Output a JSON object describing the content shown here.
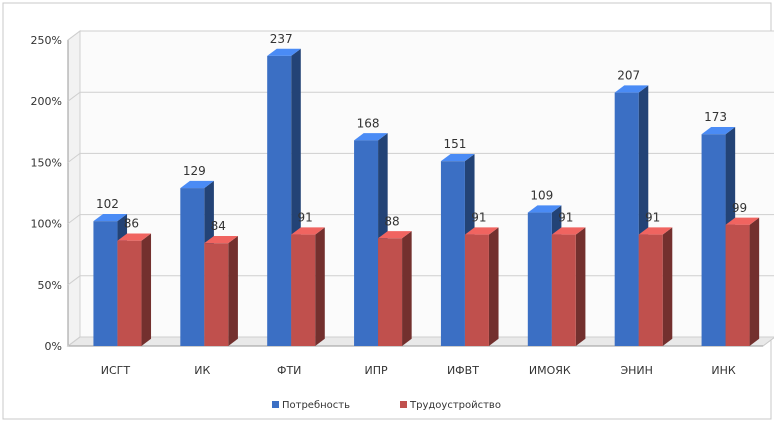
{
  "chart_data": {
    "type": "bar",
    "categories": [
      "ИСГТ",
      "ИК",
      "ФТИ",
      "ИПР",
      "ИФВТ",
      "ИМОЯК",
      "ЭНИН",
      "ИНК"
    ],
    "series": [
      {
        "name": "Потребность",
        "values": [
          102,
          129,
          237,
          168,
          151,
          109,
          207,
          173
        ],
        "color": "#3b6fc4"
      },
      {
        "name": "Трудоустройство",
        "values": [
          86,
          84,
          91,
          88,
          91,
          91,
          91,
          99
        ],
        "color": "#c0504d"
      }
    ],
    "ylim": [
      0,
      250
    ],
    "yticks": [
      0,
      50,
      100,
      150,
      200,
      250
    ],
    "ytick_labels": [
      "0%",
      "50%",
      "100%",
      "150%",
      "200%",
      "250%"
    ],
    "legend_position": "bottom",
    "grid": true,
    "style": "3d-clustered-column"
  }
}
